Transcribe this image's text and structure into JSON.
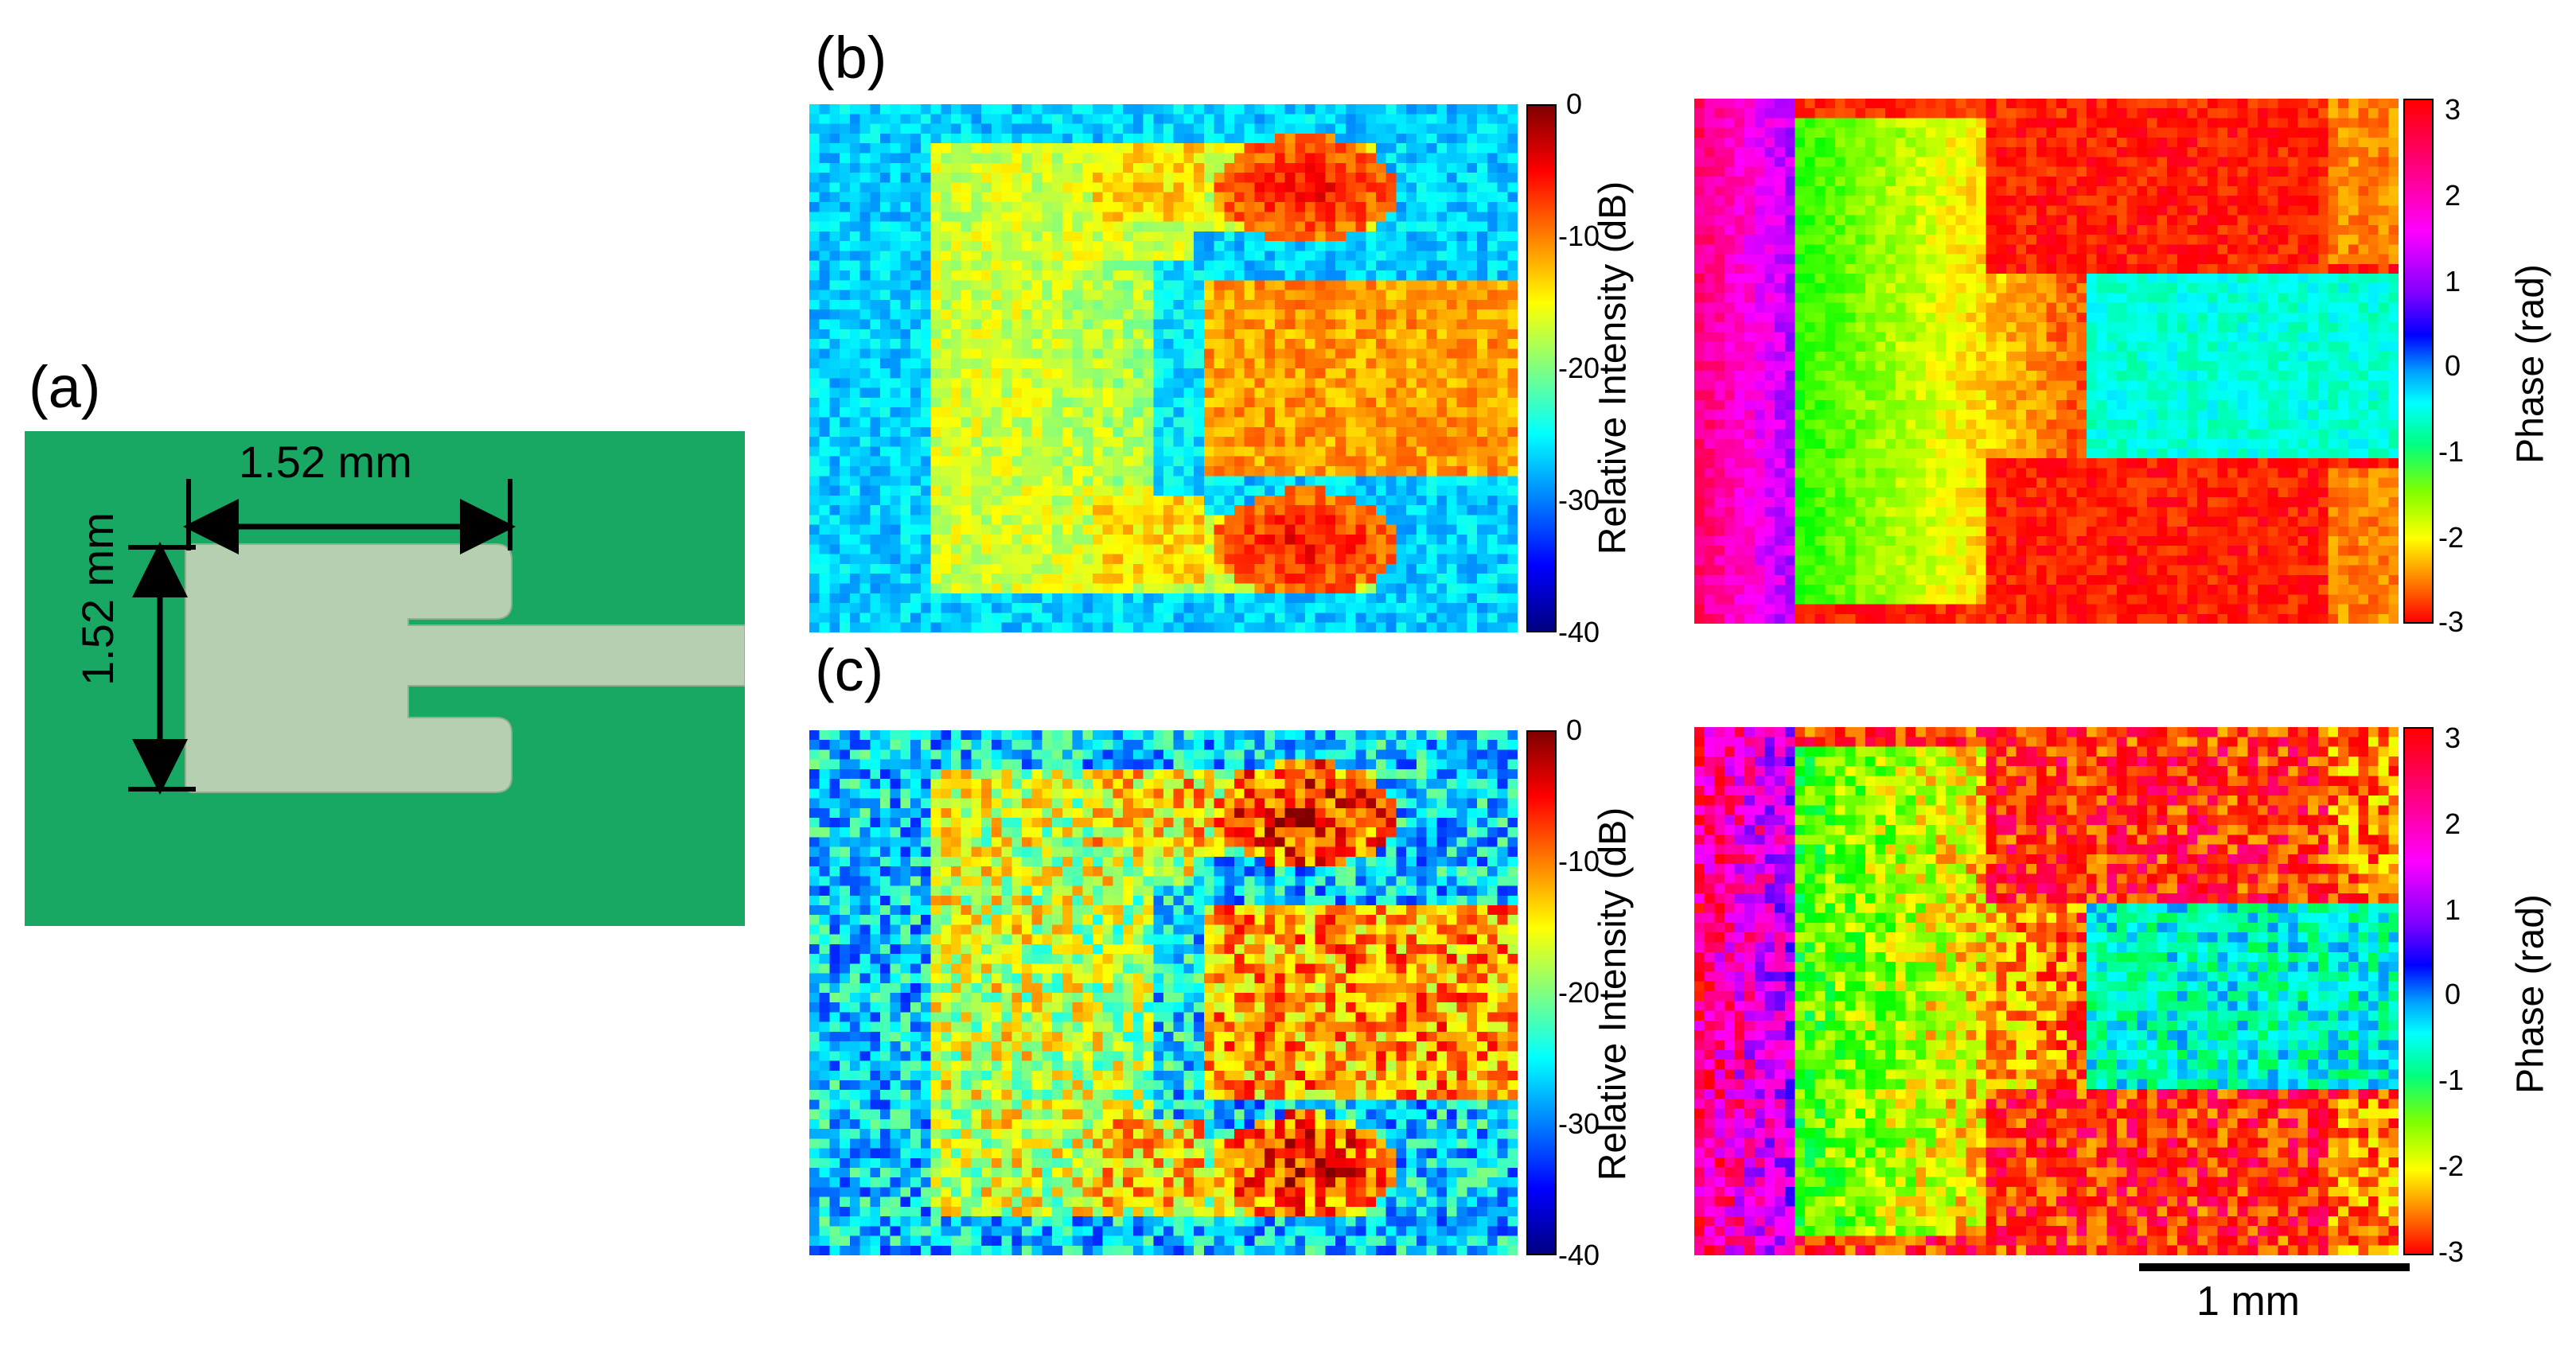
{
  "figure": {
    "panel_a": {
      "label": "(a)",
      "dim_horizontal": "1.52 mm",
      "dim_vertical": "1.52 mm",
      "colors": {
        "substrate": "#18a864",
        "metal": "#b6cfb0"
      }
    },
    "panel_b": {
      "label": "(b)"
    },
    "panel_c": {
      "label": "(c)"
    },
    "intensity_colorbar": {
      "title": "Relative Intensity (dB)",
      "ticks": [
        "0",
        "-10",
        "-20",
        "-30",
        "-40"
      ]
    },
    "phase_colorbar": {
      "title": "Phase (rad)",
      "ticks": [
        "3",
        "2",
        "1",
        "0",
        "-1",
        "-2",
        "-3"
      ]
    },
    "scale_bar": {
      "label": "1 mm"
    }
  },
  "chart_data": [
    {
      "type": "heatmap",
      "panel": "(b)",
      "quantity": "Relative Intensity",
      "unit": "dB",
      "range": [
        -40,
        0
      ],
      "colormap": "jet"
    },
    {
      "type": "heatmap",
      "panel": "(b)",
      "quantity": "Phase",
      "unit": "rad",
      "range": [
        -3.14,
        3.14
      ],
      "colormap": "hsv"
    },
    {
      "type": "heatmap",
      "panel": "(c)",
      "quantity": "Relative Intensity",
      "unit": "dB",
      "range": [
        -40,
        0
      ],
      "colormap": "jet"
    },
    {
      "type": "heatmap",
      "panel": "(c)",
      "quantity": "Phase",
      "unit": "rad",
      "range": [
        -3.14,
        3.14
      ],
      "colormap": "hsv"
    }
  ]
}
